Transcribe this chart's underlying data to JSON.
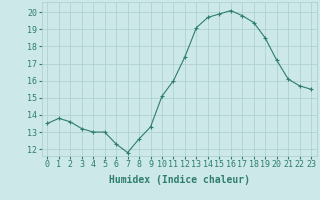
{
  "x": [
    0,
    1,
    2,
    3,
    4,
    5,
    6,
    7,
    8,
    9,
    10,
    11,
    12,
    13,
    14,
    15,
    16,
    17,
    18,
    19,
    20,
    21,
    22,
    23
  ],
  "y": [
    13.5,
    13.8,
    13.6,
    13.2,
    13.0,
    13.0,
    12.3,
    11.8,
    12.6,
    13.3,
    15.1,
    16.0,
    17.4,
    19.1,
    19.7,
    19.9,
    20.1,
    19.8,
    19.4,
    18.5,
    17.2,
    16.1,
    15.7,
    15.5
  ],
  "line_color": "#2e7d6e",
  "marker": "+",
  "marker_size": 3,
  "marker_linewidth": 0.8,
  "line_width": 0.8,
  "bg_color": "#cce8e8",
  "grid_color": "#aacece",
  "xlabel": "Humidex (Indice chaleur)",
  "xlabel_fontsize": 7,
  "ylabel_ticks": [
    12,
    13,
    14,
    15,
    16,
    17,
    18,
    19,
    20
  ],
  "xtick_labels": [
    "0",
    "1",
    "2",
    "3",
    "4",
    "5",
    "6",
    "7",
    "8",
    "9",
    "10",
    "11",
    "12",
    "13",
    "14",
    "15",
    "16",
    "17",
    "18",
    "19",
    "20",
    "21",
    "22",
    "23"
  ],
  "ylim": [
    11.6,
    20.6
  ],
  "xlim": [
    -0.5,
    23.5
  ],
  "tick_fontsize": 6
}
